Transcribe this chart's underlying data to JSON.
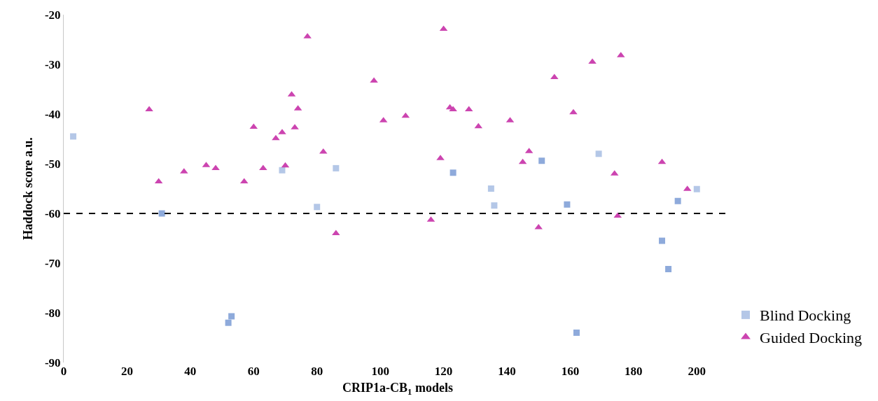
{
  "chart_data": {
    "type": "scatter",
    "xlabel": "CRIP1a-CB$_{1}$ models",
    "ylabel": "Haddock score a.u.",
    "xlim": [
      0,
      211
    ],
    "xticks": [
      0,
      20,
      40,
      60,
      80,
      100,
      120,
      140,
      160,
      180,
      200
    ],
    "ylim": [
      -90,
      -20
    ],
    "yticks": [
      -90,
      -80,
      -70,
      -60,
      -50,
      -40,
      -30,
      -20
    ],
    "legend": "bottom right",
    "ref_lines": [
      {
        "axis": "y",
        "value": -60,
        "color": "#000000",
        "line_style": "dashed"
      }
    ],
    "series": [
      {
        "name": "Blind Docking",
        "marker": "square",
        "color": "#b4c7e7",
        "x": [
          3,
          31,
          52,
          53,
          69,
          80,
          86,
          123,
          135,
          136,
          151,
          159,
          162,
          169,
          189,
          191,
          194,
          200
        ],
        "values": [
          -44.5,
          -60,
          -82,
          -80.7,
          -51.3,
          -58.7,
          -50.9,
          -51.8,
          -55,
          -58.4,
          -49.4,
          -58.2,
          -84,
          -48,
          -65.5,
          -71.2,
          -57.5,
          -55.1
        ],
        "colors": [
          "#b4c7e7",
          "#8eaadb",
          "#8eaadb",
          "#8eaadb",
          "#b4c7e7",
          "#b4c7e7",
          "#b4c7e7",
          "#8eaadb",
          "#b4c7e7",
          "#b4c7e7",
          "#8eaadb",
          "#8eaadb",
          "#8eaadb",
          "#b4c7e7",
          "#8eaadb",
          "#8eaadb",
          "#8eaadb",
          "#b4c7e7"
        ]
      },
      {
        "name": "Guided Docking",
        "marker": "triangle",
        "color": "#cc44b0",
        "x": [
          27,
          30,
          38,
          45,
          48,
          57,
          60,
          63,
          67,
          69,
          70,
          72,
          73,
          74,
          77,
          82,
          86,
          98,
          101,
          108,
          116,
          119,
          120,
          122,
          123,
          128,
          131,
          141,
          145,
          147,
          150,
          155,
          161,
          167,
          174,
          175,
          176,
          189,
          197
        ],
        "values": [
          -39.1,
          -53.6,
          -51.6,
          -50.3,
          -50.9,
          -53.6,
          -42.6,
          -50.9,
          -44.9,
          -43.7,
          -50.4,
          -36.1,
          -42.7,
          -38.9,
          -24.4,
          -47.6,
          -64,
          -33.3,
          -41.3,
          -40.4,
          -61.3,
          -48.9,
          -22.9,
          -38.7,
          -39.1,
          -39.1,
          -42.5,
          -41.3,
          -49.7,
          -47.5,
          -62.8,
          -32.6,
          -39.7,
          -29.5,
          -52,
          -60.5,
          -28.2,
          -49.7,
          -55.1
        ]
      }
    ]
  }
}
